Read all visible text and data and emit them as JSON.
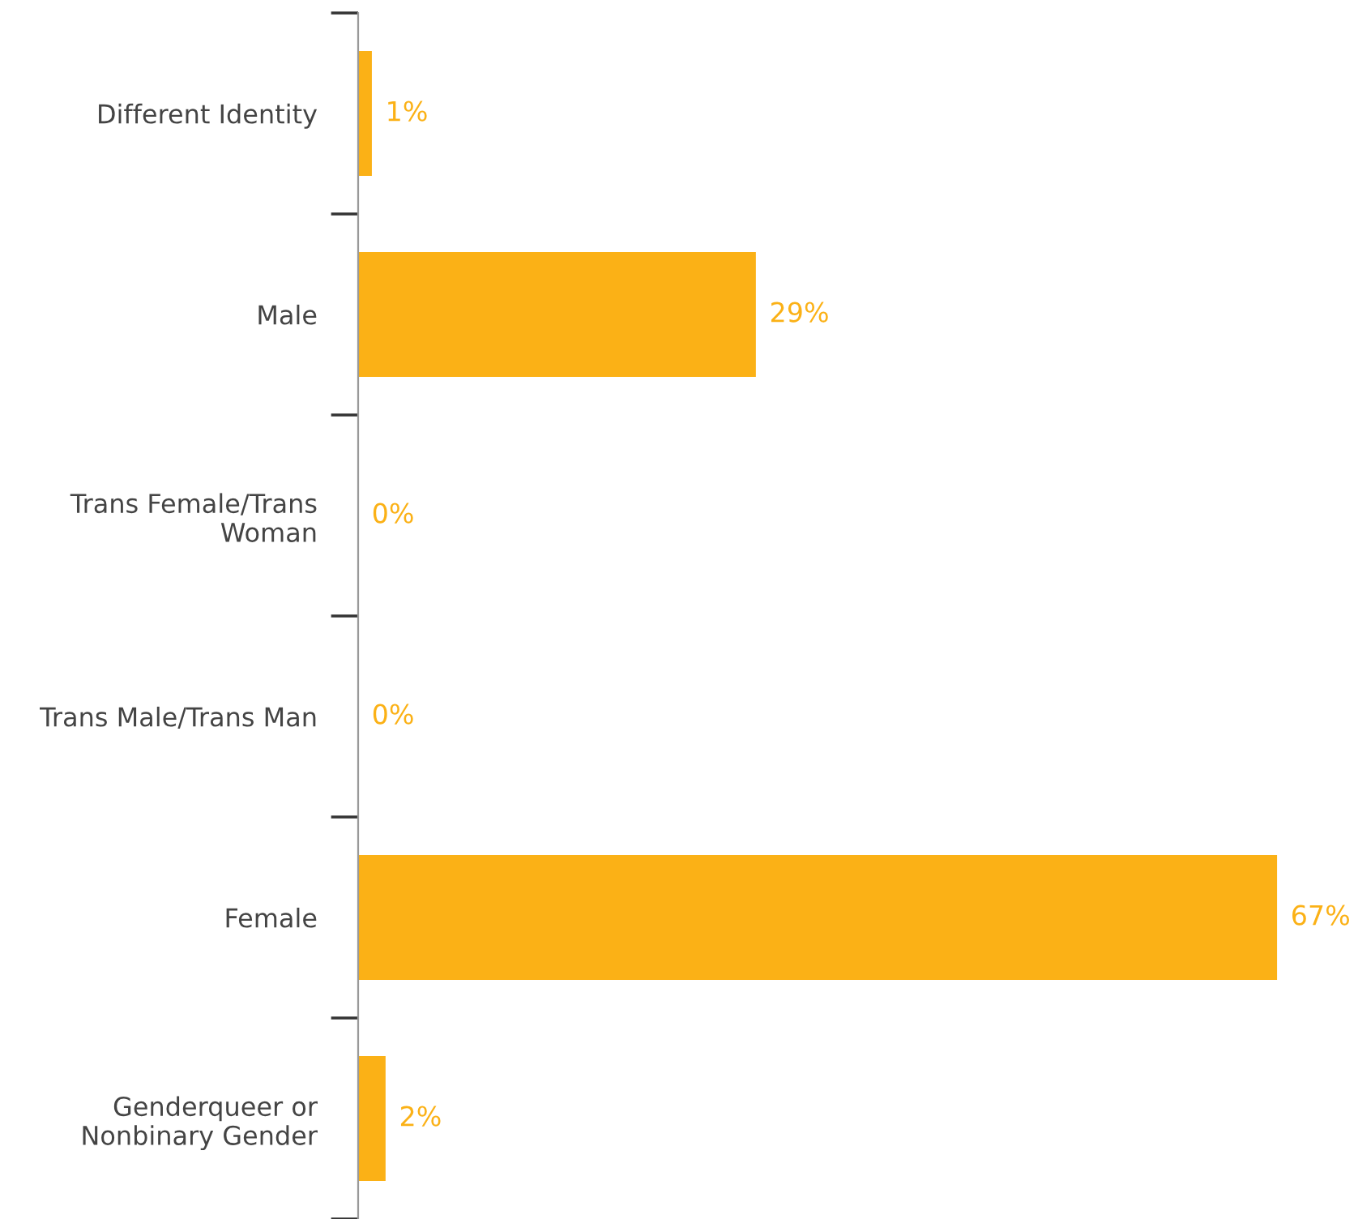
{
  "chart_data": {
    "type": "bar",
    "orientation": "horizontal",
    "categories": [
      "Different Identity",
      "Male",
      "Trans Female/Trans\nWoman",
      "Trans Male/Trans Man",
      "Female",
      "Genderqueer or\nNonbinary Gender"
    ],
    "values": [
      1,
      29,
      0,
      0,
      67,
      2
    ],
    "value_labels": [
      "1%",
      "29%",
      "0%",
      "0%",
      "67%",
      "2%"
    ],
    "color": "#fbb116",
    "grid": false,
    "legend": false
  }
}
